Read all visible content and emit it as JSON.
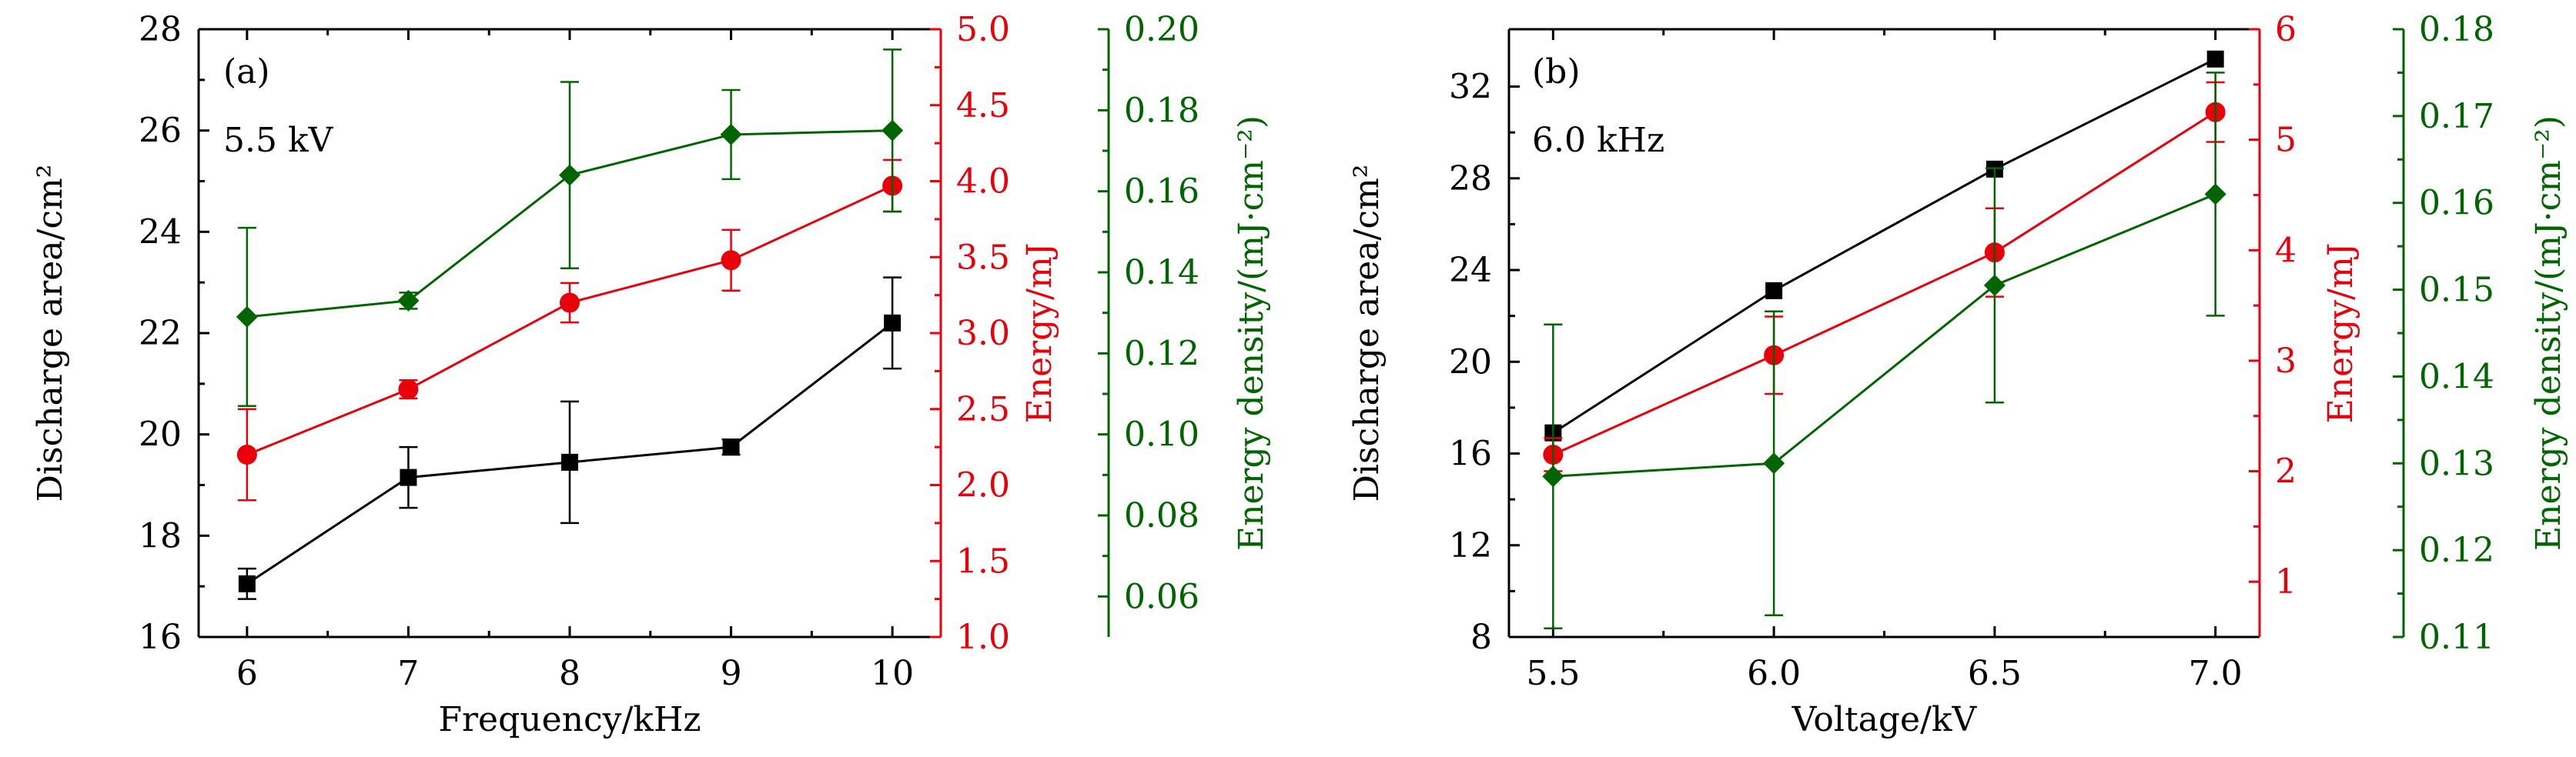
{
  "chart_data": [
    {
      "type": "line",
      "panel_label": "(a)",
      "annotation": "5.5 kV",
      "xlabel": "Frequency/kHz",
      "x": [
        6,
        7,
        8,
        9,
        10
      ],
      "xlim": [
        5.7,
        10.3
      ],
      "xticks": [
        6,
        7,
        8,
        9,
        10
      ],
      "xtick_labels": [
        "6",
        "7",
        "8",
        "9",
        "10"
      ],
      "axes": [
        {
          "id": "left",
          "label": "Discharge area/cm²",
          "color": "#000000",
          "lim": [
            16,
            28
          ],
          "ticks": [
            16,
            18,
            20,
            22,
            24,
            26,
            28
          ],
          "tick_labels": [
            "16",
            "18",
            "20",
            "22",
            "24",
            "26",
            "28"
          ]
        },
        {
          "id": "right1",
          "label": "Energy/mJ",
          "color": "#e8000b",
          "lim": [
            1.0,
            5.0
          ],
          "ticks": [
            1.0,
            1.5,
            2.0,
            2.5,
            3.0,
            3.5,
            4.0,
            4.5,
            5.0
          ],
          "tick_labels": [
            "1.0",
            "1.5",
            "2.0",
            "2.5",
            "3.0",
            "3.5",
            "4.0",
            "4.5",
            "5.0"
          ]
        },
        {
          "id": "right2",
          "label": "Energy density/(mJ·cm⁻²)",
          "color": "#006400",
          "lim": [
            0.05,
            0.2
          ],
          "ticks": [
            0.06,
            0.08,
            0.1,
            0.12,
            0.14,
            0.16,
            0.18,
            0.2
          ],
          "tick_labels": [
            "0.06",
            "0.08",
            "0.10",
            "0.12",
            "0.14",
            "0.16",
            "0.18",
            "0.20"
          ]
        }
      ],
      "series": [
        {
          "axis": "left",
          "marker": "square",
          "color": "#000000",
          "values": [
            17.05,
            19.15,
            19.45,
            19.75,
            22.2
          ],
          "errors": [
            0.3,
            0.6,
            1.2,
            0.15,
            0.9
          ]
        },
        {
          "axis": "right1",
          "marker": "circle",
          "color": "#e8000b",
          "values": [
            2.2,
            2.63,
            3.2,
            3.48,
            3.97
          ],
          "errors": [
            0.3,
            0.06,
            0.13,
            0.2,
            0.17
          ]
        },
        {
          "axis": "right2",
          "marker": "diamond",
          "color": "#006400",
          "values": [
            0.129,
            0.133,
            0.164,
            0.174,
            0.175
          ],
          "errors": [
            0.022,
            0.002,
            0.023,
            0.011,
            0.02
          ]
        }
      ]
    },
    {
      "type": "line",
      "panel_label": "(b)",
      "annotation": "6.0 kHz",
      "xlabel": "Voltage/kV",
      "x": [
        5.5,
        6.0,
        6.5,
        7.0
      ],
      "xlim": [
        5.4,
        7.1
      ],
      "xticks": [
        5.5,
        6.0,
        6.5,
        7.0
      ],
      "xtick_labels": [
        "5.5",
        "6.0",
        "6.5",
        "7.0"
      ],
      "axes": [
        {
          "id": "left",
          "label": "Discharge area/cm²",
          "color": "#000000",
          "lim": [
            8,
            34.5
          ],
          "ticks": [
            8,
            12,
            16,
            20,
            24,
            28,
            32
          ],
          "tick_labels": [
            "8",
            "12",
            "16",
            "20",
            "24",
            "28",
            "32"
          ]
        },
        {
          "id": "right1",
          "label": "Energy/mJ",
          "color": "#e8000b",
          "lim": [
            0.5,
            6.0
          ],
          "ticks": [
            1,
            2,
            3,
            4,
            5,
            6
          ],
          "tick_labels": [
            "1",
            "2",
            "3",
            "4",
            "5",
            "6"
          ]
        },
        {
          "id": "right2",
          "label": "Energy density/(mJ·cm⁻²)",
          "color": "#006400",
          "lim": [
            0.11,
            0.18
          ],
          "ticks": [
            0.11,
            0.12,
            0.13,
            0.14,
            0.15,
            0.16,
            0.17,
            0.18
          ],
          "tick_labels": [
            "0.11",
            "0.12",
            "0.13",
            "0.14",
            "0.15",
            "0.16",
            "0.17",
            "0.18"
          ]
        }
      ],
      "series": [
        {
          "axis": "left",
          "marker": "square",
          "color": "#000000",
          "values": [
            16.9,
            23.1,
            28.4,
            33.2
          ],
          "errors": [
            0,
            0,
            0,
            0
          ]
        },
        {
          "axis": "right1",
          "marker": "circle",
          "color": "#e8000b",
          "values": [
            2.15,
            3.05,
            3.98,
            5.25
          ],
          "errors": [
            0.15,
            0.35,
            0.4,
            0.27
          ]
        },
        {
          "axis": "right2",
          "marker": "diamond",
          "color": "#006400",
          "values": [
            0.1285,
            0.13,
            0.1505,
            0.161
          ],
          "errors": [
            0.0175,
            0.0175,
            0.0135,
            0.014
          ]
        }
      ]
    }
  ]
}
